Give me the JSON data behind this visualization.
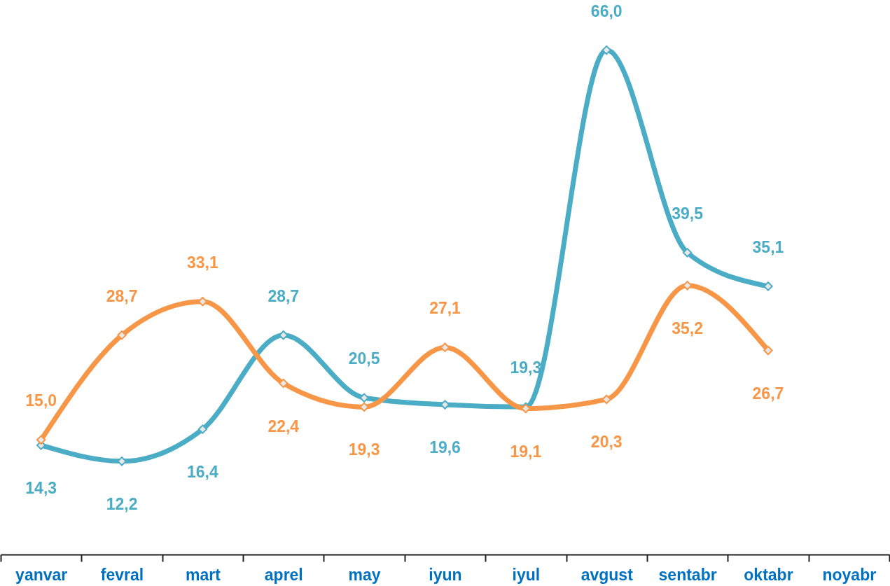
{
  "chart_data": {
    "type": "line",
    "categories": [
      "yanvar",
      "fevral",
      "mart",
      "aprel",
      "may",
      "iyun",
      "iyul",
      "avgust",
      "sentabr",
      "oktabr",
      "noyabr"
    ],
    "series": [
      {
        "color": "#f79646",
        "values": [
          15.0,
          28.7,
          33.1,
          22.4,
          19.3,
          27.1,
          19.1,
          20.3,
          35.2,
          26.7,
          null
        ],
        "value_labels": [
          "15,0",
          "28,7",
          "33,1",
          "22,4",
          "19,3",
          "27,1",
          "19,1",
          "20,3",
          "35,2",
          "26,7",
          null
        ]
      },
      {
        "color": "#4bacc6",
        "values": [
          14.3,
          12.2,
          16.4,
          28.7,
          20.5,
          19.6,
          19.3,
          66.0,
          39.5,
          35.1,
          null
        ],
        "value_labels": [
          "14,3",
          "12,2",
          "16,4",
          "28,7",
          "20,5",
          "19,6",
          "19,3",
          "66,0",
          "39,5",
          "35,1",
          null
        ]
      }
    ],
    "marker": "diamond",
    "legend": false,
    "grid": false
  }
}
